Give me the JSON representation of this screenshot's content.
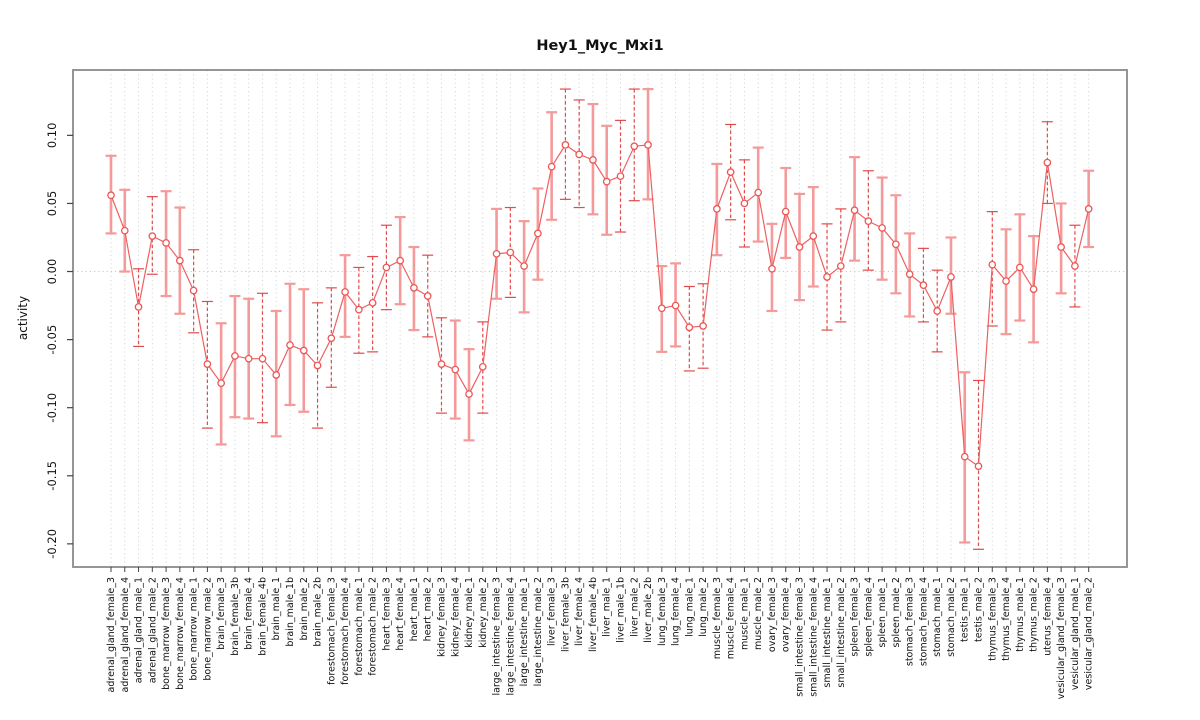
{
  "chart_data": {
    "type": "line",
    "subtype": "points-with-error-bars",
    "title": "Hey1_Myc_Mxi1",
    "xlabel": "",
    "ylabel": "activity",
    "ylim": [
      -0.217,
      0.148
    ],
    "grid": "vertical-dotted-per-category-plus-zero-line",
    "legend_position": "none",
    "y_ticks": [
      {
        "value": -0.2,
        "label": "-0.20"
      },
      {
        "value": -0.15,
        "label": "-0.15"
      },
      {
        "value": -0.1,
        "label": "-0.10"
      },
      {
        "value": -0.05,
        "label": "-0.05"
      },
      {
        "value": 0.0,
        "label": "0.00"
      },
      {
        "value": 0.05,
        "label": "0.05"
      },
      {
        "value": 0.1,
        "label": "0.10"
      }
    ],
    "points": [
      {
        "label": "adrenal_gland_female_3",
        "value": 0.056,
        "lo": 0.028,
        "hi": 0.085,
        "bar_style": "solid"
      },
      {
        "label": "adrenal_gland_female_4",
        "value": 0.03,
        "lo": 0.0,
        "hi": 0.06,
        "bar_style": "solid"
      },
      {
        "label": "adrenal_gland_male_1",
        "value": -0.026,
        "lo": -0.055,
        "hi": 0.002,
        "bar_style": "dashed"
      },
      {
        "label": "adrenal_gland_male_2",
        "value": 0.026,
        "lo": -0.002,
        "hi": 0.055,
        "bar_style": "dashed"
      },
      {
        "label": "bone_marrow_female_3",
        "value": 0.021,
        "lo": -0.018,
        "hi": 0.059,
        "bar_style": "solid"
      },
      {
        "label": "bone_marrow_female_4",
        "value": 0.008,
        "lo": -0.031,
        "hi": 0.047,
        "bar_style": "solid"
      },
      {
        "label": "bone_marrow_male_1",
        "value": -0.014,
        "lo": -0.045,
        "hi": 0.016,
        "bar_style": "dashed"
      },
      {
        "label": "bone_marrow_male_2",
        "value": -0.068,
        "lo": -0.115,
        "hi": -0.022,
        "bar_style": "dashed"
      },
      {
        "label": "brain_female_3",
        "value": -0.082,
        "lo": -0.127,
        "hi": -0.038,
        "bar_style": "solid"
      },
      {
        "label": "brain_female_3b",
        "value": -0.062,
        "lo": -0.107,
        "hi": -0.018,
        "bar_style": "solid"
      },
      {
        "label": "brain_female_4",
        "value": -0.064,
        "lo": -0.108,
        "hi": -0.02,
        "bar_style": "solid"
      },
      {
        "label": "brain_female_4b",
        "value": -0.064,
        "lo": -0.111,
        "hi": -0.016,
        "bar_style": "dashed"
      },
      {
        "label": "brain_male_1",
        "value": -0.076,
        "lo": -0.121,
        "hi": -0.029,
        "bar_style": "solid"
      },
      {
        "label": "brain_male_1b",
        "value": -0.054,
        "lo": -0.098,
        "hi": -0.009,
        "bar_style": "solid"
      },
      {
        "label": "brain_male_2",
        "value": -0.058,
        "lo": -0.103,
        "hi": -0.013,
        "bar_style": "solid"
      },
      {
        "label": "brain_male_2b",
        "value": -0.069,
        "lo": -0.115,
        "hi": -0.023,
        "bar_style": "dashed"
      },
      {
        "label": "forestomach_female_3",
        "value": -0.049,
        "lo": -0.085,
        "hi": -0.012,
        "bar_style": "dashed"
      },
      {
        "label": "forestomach_female_4",
        "value": -0.015,
        "lo": -0.048,
        "hi": 0.012,
        "bar_style": "solid"
      },
      {
        "label": "forestomach_male_1",
        "value": -0.028,
        "lo": -0.06,
        "hi": 0.003,
        "bar_style": "dashed"
      },
      {
        "label": "forestomach_male_2",
        "value": -0.023,
        "lo": -0.059,
        "hi": 0.011,
        "bar_style": "dashed"
      },
      {
        "label": "heart_female_3",
        "value": 0.003,
        "lo": -0.028,
        "hi": 0.034,
        "bar_style": "dashed"
      },
      {
        "label": "heart_female_4",
        "value": 0.008,
        "lo": -0.024,
        "hi": 0.04,
        "bar_style": "solid"
      },
      {
        "label": "heart_male_1",
        "value": -0.012,
        "lo": -0.043,
        "hi": 0.018,
        "bar_style": "solid"
      },
      {
        "label": "heart_male_2",
        "value": -0.018,
        "lo": -0.048,
        "hi": 0.012,
        "bar_style": "dashed"
      },
      {
        "label": "kidney_female_3",
        "value": -0.068,
        "lo": -0.104,
        "hi": -0.034,
        "bar_style": "dashed"
      },
      {
        "label": "kidney_female_4",
        "value": -0.072,
        "lo": -0.108,
        "hi": -0.036,
        "bar_style": "solid"
      },
      {
        "label": "kidney_male_1",
        "value": -0.09,
        "lo": -0.124,
        "hi": -0.057,
        "bar_style": "solid"
      },
      {
        "label": "kidney_male_2",
        "value": -0.07,
        "lo": -0.104,
        "hi": -0.037,
        "bar_style": "dashed"
      },
      {
        "label": "large_intestine_female_3",
        "value": 0.013,
        "lo": -0.02,
        "hi": 0.046,
        "bar_style": "solid"
      },
      {
        "label": "large_intestine_female_4",
        "value": 0.014,
        "lo": -0.019,
        "hi": 0.047,
        "bar_style": "dashed"
      },
      {
        "label": "large_intestine_male_1",
        "value": 0.004,
        "lo": -0.03,
        "hi": 0.037,
        "bar_style": "solid"
      },
      {
        "label": "large_intestine_male_2",
        "value": 0.028,
        "lo": -0.006,
        "hi": 0.061,
        "bar_style": "solid"
      },
      {
        "label": "liver_female_3",
        "value": 0.077,
        "lo": 0.038,
        "hi": 0.117,
        "bar_style": "solid"
      },
      {
        "label": "liver_female_3b",
        "value": 0.093,
        "lo": 0.053,
        "hi": 0.134,
        "bar_style": "dashed"
      },
      {
        "label": "liver_female_4",
        "value": 0.086,
        "lo": 0.047,
        "hi": 0.126,
        "bar_style": "dashed"
      },
      {
        "label": "liver_female_4b",
        "value": 0.082,
        "lo": 0.042,
        "hi": 0.123,
        "bar_style": "solid"
      },
      {
        "label": "liver_male_1",
        "value": 0.066,
        "lo": 0.027,
        "hi": 0.107,
        "bar_style": "solid"
      },
      {
        "label": "liver_male_1b",
        "value": 0.07,
        "lo": 0.029,
        "hi": 0.111,
        "bar_style": "dashed"
      },
      {
        "label": "liver_male_2",
        "value": 0.092,
        "lo": 0.052,
        "hi": 0.134,
        "bar_style": "dashed"
      },
      {
        "label": "liver_male_2b",
        "value": 0.093,
        "lo": 0.053,
        "hi": 0.134,
        "bar_style": "solid"
      },
      {
        "label": "lung_female_3",
        "value": -0.027,
        "lo": -0.059,
        "hi": 0.004,
        "bar_style": "solid"
      },
      {
        "label": "lung_female_4",
        "value": -0.025,
        "lo": -0.055,
        "hi": 0.006,
        "bar_style": "solid"
      },
      {
        "label": "lung_male_1",
        "value": -0.041,
        "lo": -0.073,
        "hi": -0.011,
        "bar_style": "dashed"
      },
      {
        "label": "lung_male_2",
        "value": -0.04,
        "lo": -0.071,
        "hi": -0.009,
        "bar_style": "dashed"
      },
      {
        "label": "muscle_female_3",
        "value": 0.046,
        "lo": 0.012,
        "hi": 0.079,
        "bar_style": "solid"
      },
      {
        "label": "muscle_female_4",
        "value": 0.073,
        "lo": 0.038,
        "hi": 0.108,
        "bar_style": "dashed"
      },
      {
        "label": "muscle_male_1",
        "value": 0.05,
        "lo": 0.018,
        "hi": 0.082,
        "bar_style": "dashed"
      },
      {
        "label": "muscle_male_2",
        "value": 0.058,
        "lo": 0.022,
        "hi": 0.091,
        "bar_style": "solid"
      },
      {
        "label": "ovary_female_3",
        "value": 0.002,
        "lo": -0.029,
        "hi": 0.035,
        "bar_style": "solid"
      },
      {
        "label": "ovary_female_4",
        "value": 0.044,
        "lo": 0.01,
        "hi": 0.076,
        "bar_style": "solid"
      },
      {
        "label": "small_intestine_female_3",
        "value": 0.018,
        "lo": -0.021,
        "hi": 0.057,
        "bar_style": "solid"
      },
      {
        "label": "small_intestine_female_4",
        "value": 0.026,
        "lo": -0.011,
        "hi": 0.062,
        "bar_style": "solid"
      },
      {
        "label": "small_intestine_male_1",
        "value": -0.004,
        "lo": -0.043,
        "hi": 0.035,
        "bar_style": "dashed"
      },
      {
        "label": "small_intestine_male_2",
        "value": 0.004,
        "lo": -0.037,
        "hi": 0.046,
        "bar_style": "dashed"
      },
      {
        "label": "spleen_female_3",
        "value": 0.045,
        "lo": 0.008,
        "hi": 0.084,
        "bar_style": "solid"
      },
      {
        "label": "spleen_female_4",
        "value": 0.037,
        "lo": 0.001,
        "hi": 0.074,
        "bar_style": "dashed"
      },
      {
        "label": "spleen_male_1",
        "value": 0.032,
        "lo": -0.006,
        "hi": 0.069,
        "bar_style": "solid"
      },
      {
        "label": "spleen_male_2",
        "value": 0.02,
        "lo": -0.016,
        "hi": 0.056,
        "bar_style": "solid"
      },
      {
        "label": "stomach_female_3",
        "value": -0.002,
        "lo": -0.033,
        "hi": 0.028,
        "bar_style": "solid"
      },
      {
        "label": "stomach_female_4",
        "value": -0.01,
        "lo": -0.037,
        "hi": 0.017,
        "bar_style": "dashed"
      },
      {
        "label": "stomach_male_1",
        "value": -0.029,
        "lo": -0.059,
        "hi": 0.001,
        "bar_style": "dashed"
      },
      {
        "label": "stomach_male_2",
        "value": -0.004,
        "lo": -0.031,
        "hi": 0.025,
        "bar_style": "solid"
      },
      {
        "label": "testis_male_1",
        "value": -0.136,
        "lo": -0.199,
        "hi": -0.074,
        "bar_style": "solid"
      },
      {
        "label": "testis_male_2",
        "value": -0.143,
        "lo": -0.204,
        "hi": -0.08,
        "bar_style": "dashed"
      },
      {
        "label": "thymus_female_3",
        "value": 0.005,
        "lo": -0.04,
        "hi": 0.044,
        "bar_style": "dashed"
      },
      {
        "label": "thymus_female_4",
        "value": -0.007,
        "lo": -0.046,
        "hi": 0.031,
        "bar_style": "solid"
      },
      {
        "label": "thymus_male_1",
        "value": 0.003,
        "lo": -0.036,
        "hi": 0.042,
        "bar_style": "solid"
      },
      {
        "label": "thymus_male_2",
        "value": -0.013,
        "lo": -0.052,
        "hi": 0.026,
        "bar_style": "solid"
      },
      {
        "label": "uterus_female_4",
        "value": 0.08,
        "lo": 0.05,
        "hi": 0.11,
        "bar_style": "dashed"
      },
      {
        "label": "vesicular_gland_female_3",
        "value": 0.018,
        "lo": -0.016,
        "hi": 0.05,
        "bar_style": "solid"
      },
      {
        "label": "vesicular_gland_male_1",
        "value": 0.004,
        "lo": -0.026,
        "hi": 0.034,
        "bar_style": "dashed"
      },
      {
        "label": "vesicular_gland_male_2",
        "value": 0.046,
        "lo": 0.018,
        "hi": 0.074,
        "bar_style": "solid"
      }
    ]
  },
  "colors": {
    "point_stroke": "#ee5555",
    "series_line": "#ee6060",
    "solid_bar": "#f49a9a",
    "dashed_bar": "#e14b4b",
    "grid_line": "#d6d6d6",
    "zero_line": "#c9c9c9",
    "plot_border": "#8a8a8a",
    "tick": "#444444",
    "label_text": "#111111",
    "background": "#ffffff"
  }
}
